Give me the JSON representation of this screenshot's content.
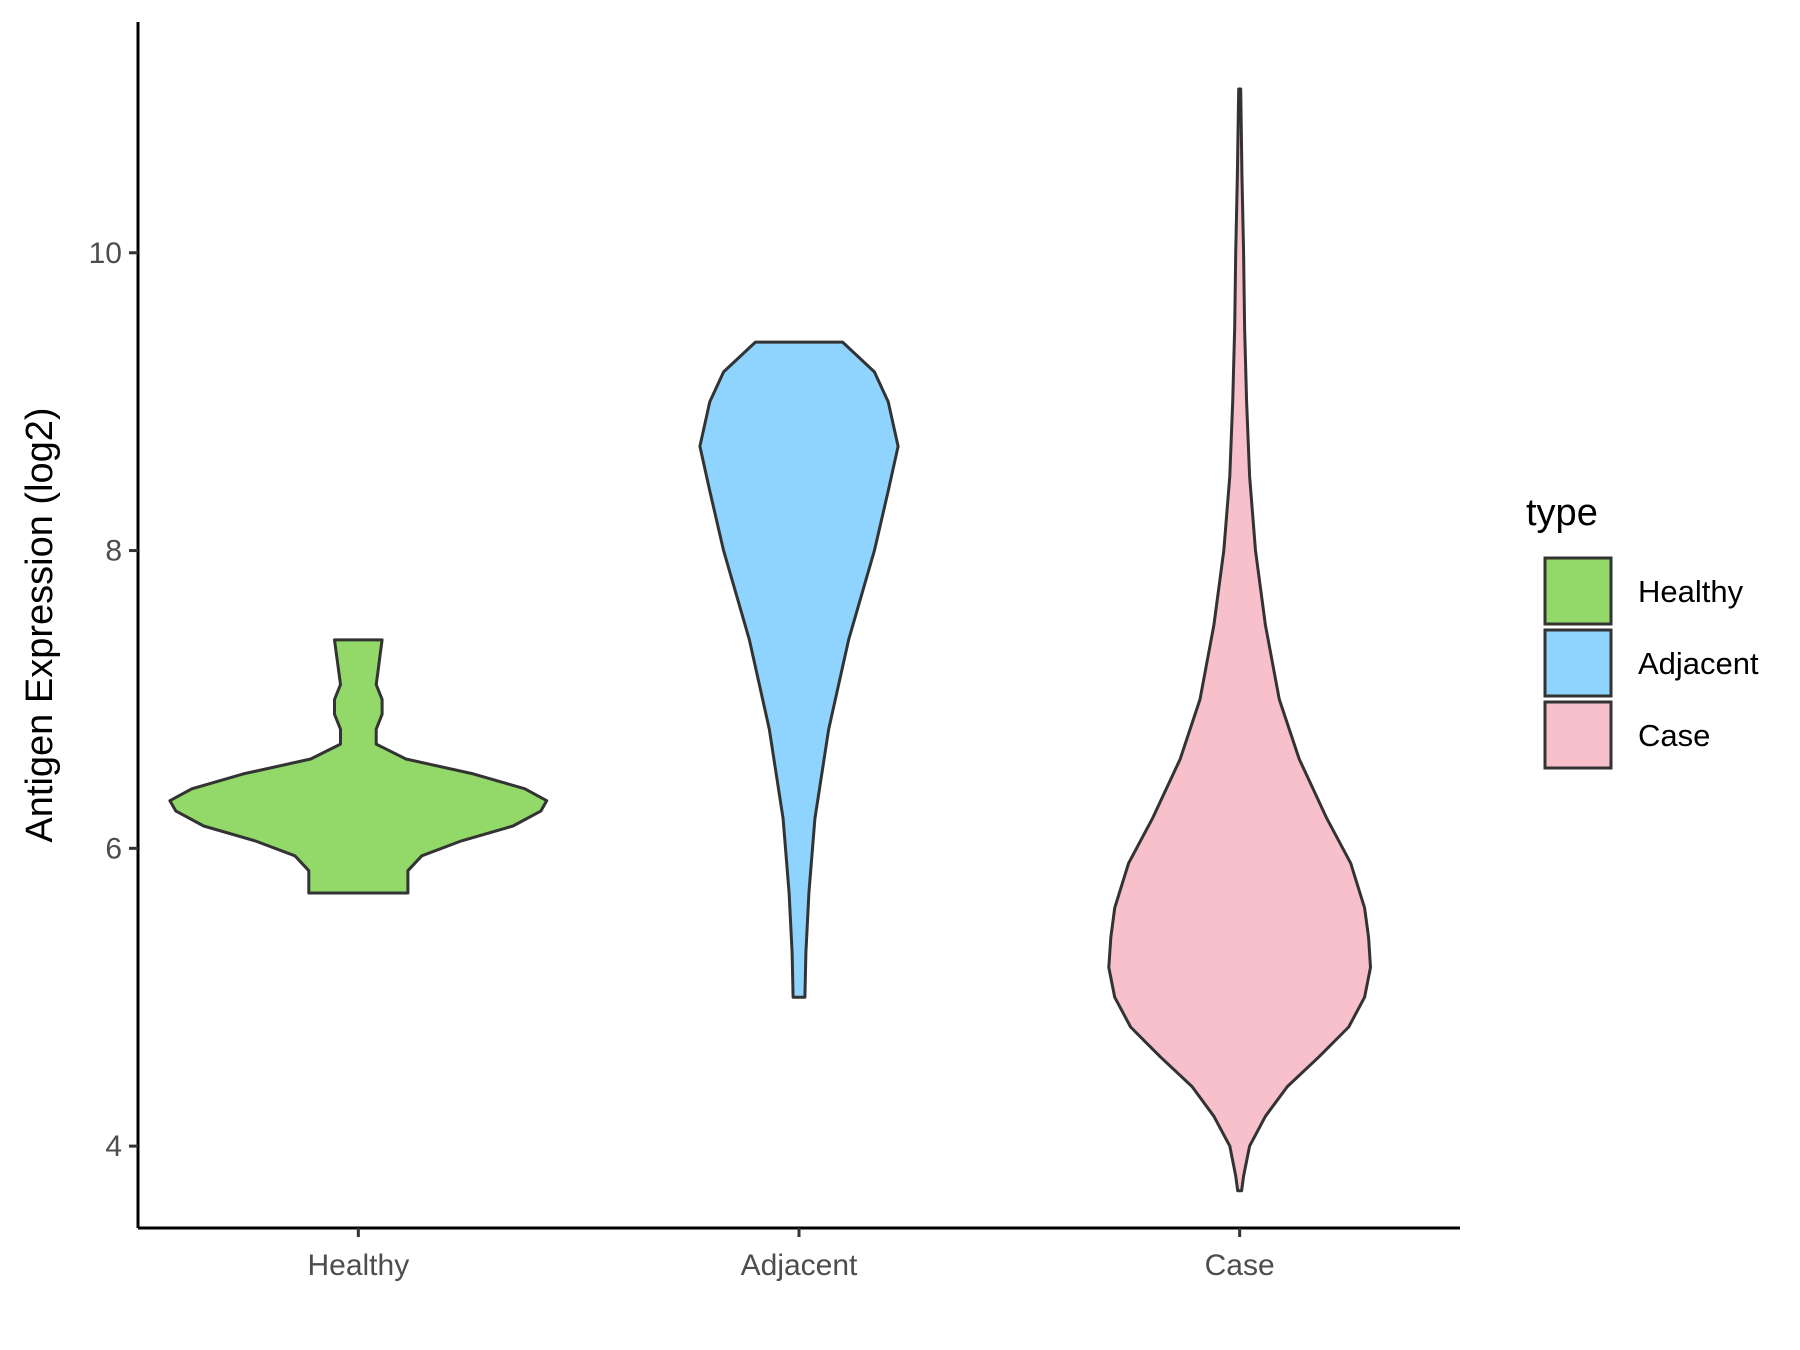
{
  "chart_data": {
    "type": "violin",
    "title": "",
    "xlabel": "",
    "ylabel": "Antigen Expression (log2)",
    "ylim": [
      3.45,
      11.55
    ],
    "yticks": [
      4,
      6,
      8,
      10
    ],
    "categories": [
      "Healthy",
      "Adjacent",
      "Case"
    ],
    "grid": false,
    "legend": {
      "title": "type",
      "position": "right",
      "entries": [
        "Healthy",
        "Adjacent",
        "Case"
      ]
    },
    "series": [
      {
        "name": "Healthy",
        "color": "#92d96a",
        "profile": [
          [
            5.7,
            0.25
          ],
          [
            5.75,
            0.25
          ],
          [
            5.85,
            0.25
          ],
          [
            5.95,
            0.32
          ],
          [
            6.05,
            0.52
          ],
          [
            6.15,
            0.78
          ],
          [
            6.25,
            0.92
          ],
          [
            6.32,
            0.95
          ],
          [
            6.4,
            0.84
          ],
          [
            6.5,
            0.58
          ],
          [
            6.6,
            0.24
          ],
          [
            6.7,
            0.09
          ],
          [
            6.8,
            0.09
          ],
          [
            6.9,
            0.12
          ],
          [
            7.0,
            0.12
          ],
          [
            7.1,
            0.09
          ],
          [
            7.2,
            0.1
          ],
          [
            7.3,
            0.11
          ],
          [
            7.4,
            0.12
          ]
        ]
      },
      {
        "name": "Adjacent",
        "color": "#8fd3ff",
        "profile": [
          [
            5.0,
            0.03
          ],
          [
            5.3,
            0.035
          ],
          [
            5.7,
            0.05
          ],
          [
            6.2,
            0.08
          ],
          [
            6.8,
            0.15
          ],
          [
            7.4,
            0.25
          ],
          [
            8.0,
            0.38
          ],
          [
            8.4,
            0.45
          ],
          [
            8.7,
            0.5
          ],
          [
            9.0,
            0.45
          ],
          [
            9.2,
            0.38
          ],
          [
            9.4,
            0.22
          ]
        ]
      },
      {
        "name": "Case",
        "color": "#f7c0cb",
        "profile": [
          [
            3.7,
            0.01
          ],
          [
            3.8,
            0.02
          ],
          [
            4.0,
            0.05
          ],
          [
            4.2,
            0.13
          ],
          [
            4.4,
            0.24
          ],
          [
            4.6,
            0.4
          ],
          [
            4.8,
            0.55
          ],
          [
            5.0,
            0.63
          ],
          [
            5.2,
            0.66
          ],
          [
            5.4,
            0.65
          ],
          [
            5.6,
            0.63
          ],
          [
            5.9,
            0.56
          ],
          [
            6.2,
            0.44
          ],
          [
            6.6,
            0.3
          ],
          [
            7.0,
            0.2
          ],
          [
            7.5,
            0.13
          ],
          [
            8.0,
            0.08
          ],
          [
            8.5,
            0.05
          ],
          [
            9.0,
            0.035
          ],
          [
            9.5,
            0.025
          ],
          [
            10.0,
            0.02
          ],
          [
            10.5,
            0.012
          ],
          [
            11.1,
            0.005
          ]
        ]
      }
    ]
  }
}
